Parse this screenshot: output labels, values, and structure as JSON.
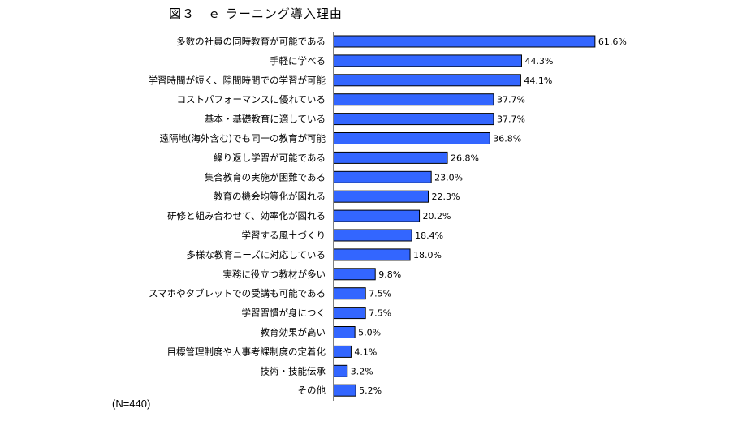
{
  "chart_data": {
    "type": "bar",
    "orientation": "horizontal",
    "title": "図３　ｅ ラーニング導入理由",
    "note": "(N=440)",
    "bar_color": "#3366ff",
    "bar_border": "#000000",
    "value_unit": "%",
    "categories": [
      "多数の社員の同時教育が可能である",
      "手軽に学べる",
      "学習時間が短く、隙間時間での学習が可能",
      "コストパフォーマンスに優れている",
      "基本・基礎教育に適している",
      "遠隔地(海外含む)でも同一の教育が可能",
      "繰り返し学習が可能である",
      "集合教育の実施が困難である",
      "教育の機会均等化が図れる",
      "研修と組み合わせて、効率化が図れる",
      "学習する風土づくり",
      "多様な教育ニーズに対応している",
      "実務に役立つ教材が多い",
      "スマホやタブレットでの受講も可能である",
      "学習習慣が身につく",
      "教育効果が高い",
      "目標管理制度や人事考課制度の定着化",
      "技術・技能伝承",
      "その他"
    ],
    "values": [
      61.6,
      44.3,
      44.1,
      37.7,
      37.7,
      36.8,
      26.8,
      23.0,
      22.3,
      20.2,
      18.4,
      18.0,
      9.8,
      7.5,
      7.5,
      5.0,
      4.1,
      3.2,
      5.2
    ],
    "value_labels": [
      "61.6%",
      "44.3%",
      "44.1%",
      "37.7%",
      "37.7%",
      "36.8%",
      "26.8%",
      "23.0%",
      "22.3%",
      "20.2%",
      "18.4%",
      "18.0%",
      "9.8%",
      "7.5%",
      "7.5%",
      "5.0%",
      "4.1%",
      "3.2%",
      "5.2%"
    ]
  }
}
